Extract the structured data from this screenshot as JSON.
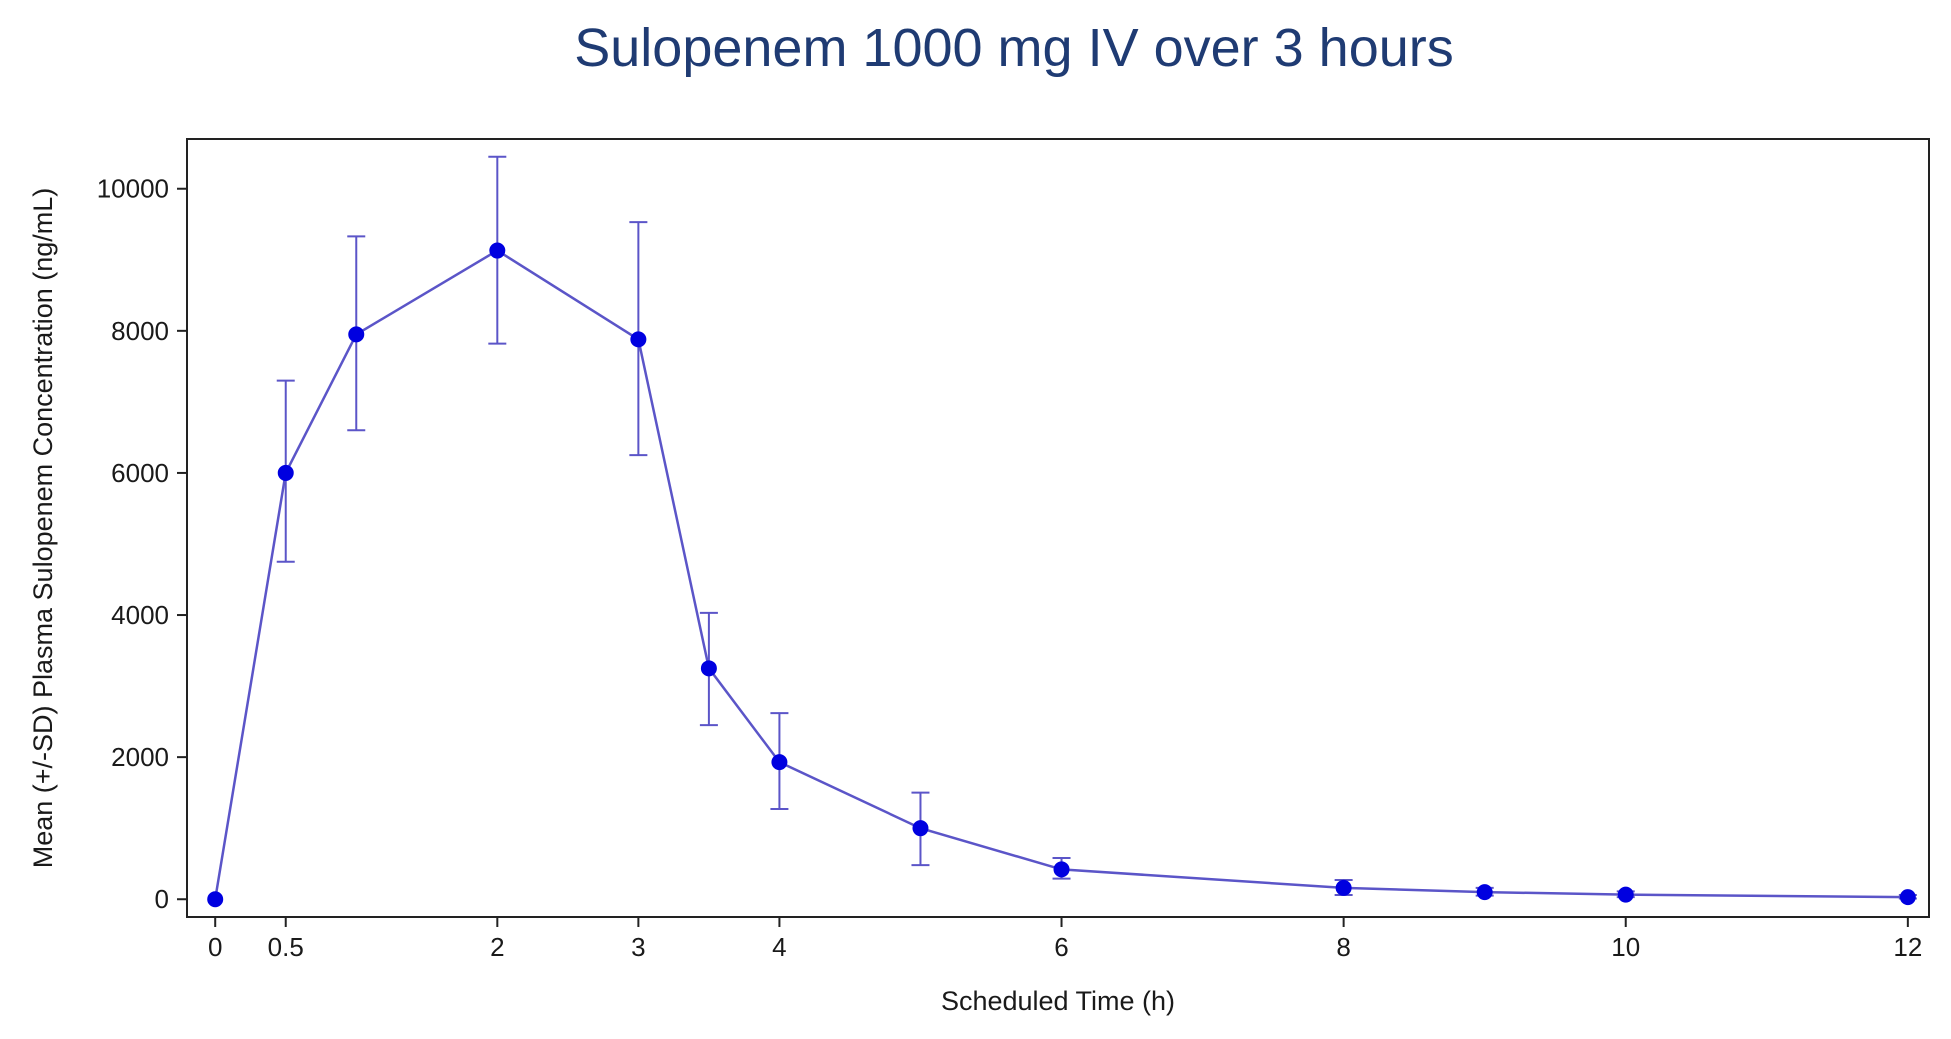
{
  "chart_data": {
    "type": "line",
    "title": "Sulopenem 1000 mg IV over 3 hours",
    "xlabel": "Scheduled Time (h)",
    "ylabel": "Mean (+/-SD) Plasma Sulopenem Concentration (ng/mL)",
    "xlim": [
      -0.2,
      12.15
    ],
    "ylim": [
      -250,
      10700
    ],
    "x_ticks": [
      0,
      0.5,
      2,
      3,
      4,
      6,
      8,
      10,
      12
    ],
    "x_tick_labels": [
      "0",
      "0.5",
      "2",
      "3",
      "4",
      "6",
      "8",
      "10",
      "12"
    ],
    "y_ticks": [
      0,
      2000,
      4000,
      6000,
      8000,
      10000
    ],
    "y_tick_labels": [
      "0",
      "2000",
      "4000",
      "6000",
      "8000",
      "10000"
    ],
    "grid": false,
    "series": [
      {
        "name": "Sulopenem 1000 mg IV",
        "color": "#0000e0",
        "line_color": "#5b55c8",
        "points": [
          {
            "x": 0,
            "y": 0,
            "sd_low": 0,
            "sd_high": 0
          },
          {
            "x": 0.5,
            "y": 6000,
            "sd_low": 4750,
            "sd_high": 7300
          },
          {
            "x": 1,
            "y": 7950,
            "sd_low": 6600,
            "sd_high": 9330
          },
          {
            "x": 2,
            "y": 9130,
            "sd_low": 7820,
            "sd_high": 10450
          },
          {
            "x": 3,
            "y": 7880,
            "sd_low": 6250,
            "sd_high": 9530
          },
          {
            "x": 3.5,
            "y": 3250,
            "sd_low": 2450,
            "sd_high": 4030
          },
          {
            "x": 4,
            "y": 1930,
            "sd_low": 1270,
            "sd_high": 2620
          },
          {
            "x": 5,
            "y": 1000,
            "sd_low": 480,
            "sd_high": 1500
          },
          {
            "x": 6,
            "y": 420,
            "sd_low": 290,
            "sd_high": 580
          },
          {
            "x": 8,
            "y": 160,
            "sd_low": 60,
            "sd_high": 270
          },
          {
            "x": 9,
            "y": 100,
            "sd_low": 50,
            "sd_high": 160
          },
          {
            "x": 10,
            "y": 65,
            "sd_low": 30,
            "sd_high": 110
          },
          {
            "x": 12,
            "y": 30,
            "sd_low": 10,
            "sd_high": 60
          }
        ]
      }
    ]
  }
}
